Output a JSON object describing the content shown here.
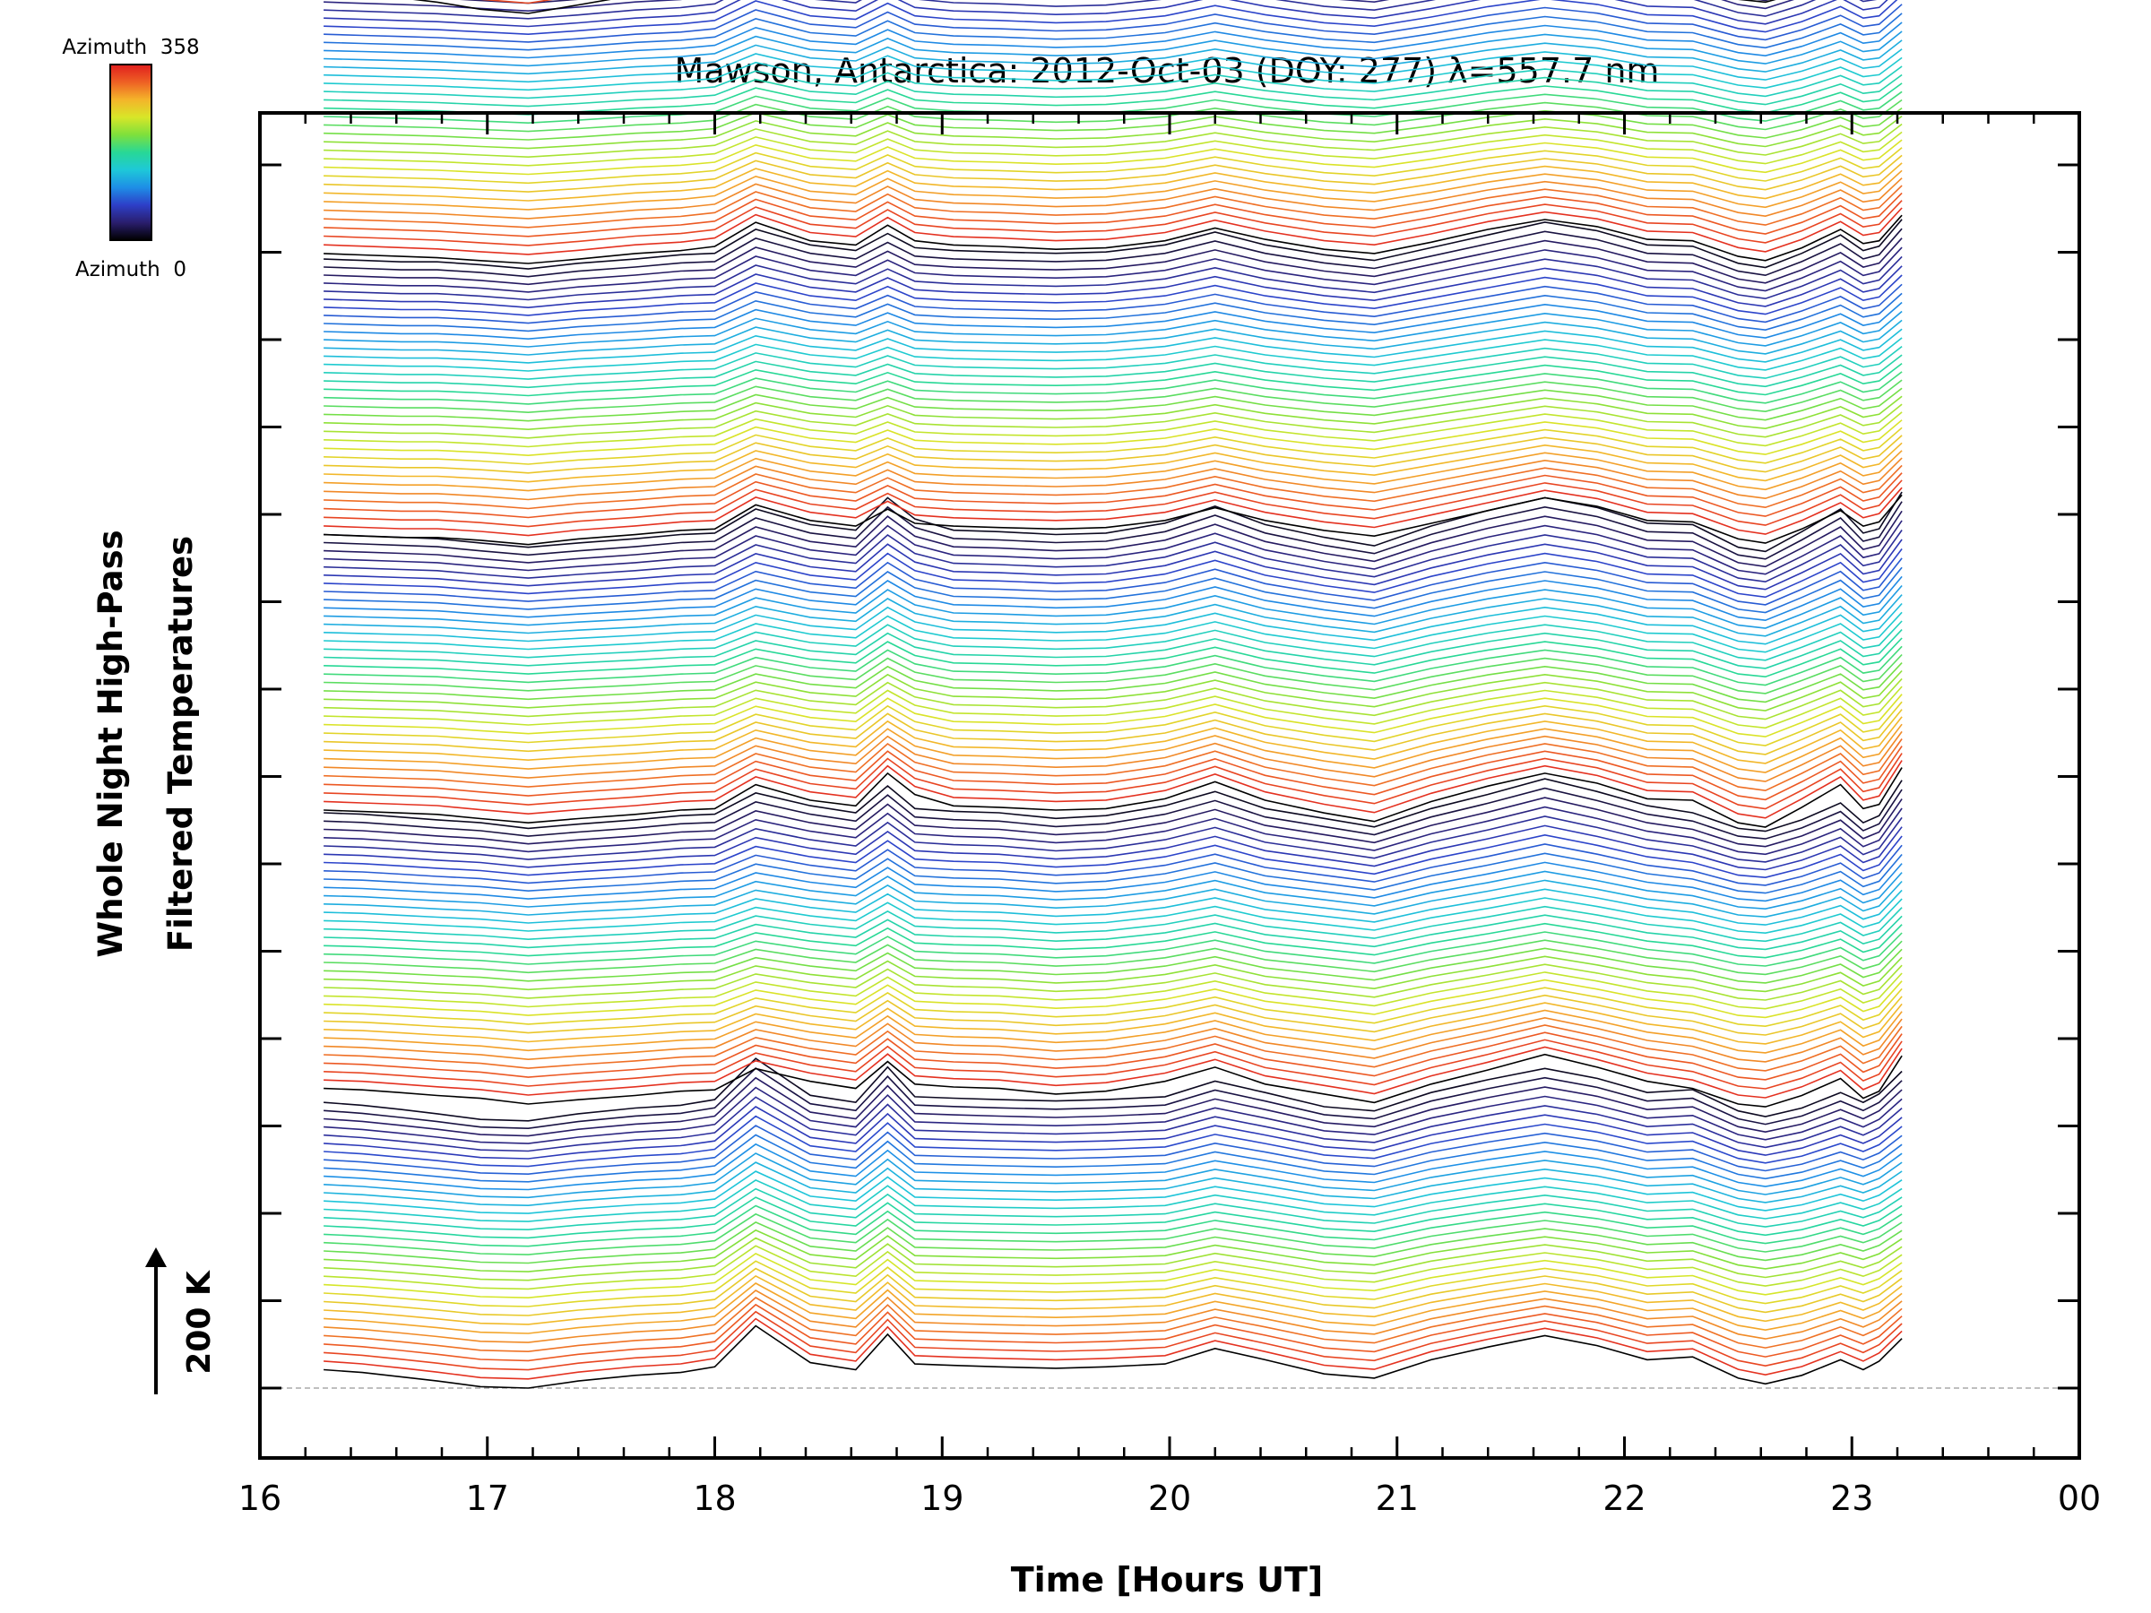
{
  "chart_data": {
    "type": "line",
    "title": "Mawson, Antarctica: 2012-Oct-03 (DOY: 277) λ=557.7 nm",
    "xlabel": "Time [Hours UT]",
    "ylabel_line1": "Whole Night High-Pass",
    "ylabel_line2": "Filtered Temperatures",
    "xlim": [
      16,
      24
    ],
    "x_ticks": [
      "16",
      "17",
      "18",
      "19",
      "20",
      "21",
      "22",
      "23",
      "00"
    ],
    "scale_bar_label": "200 K",
    "scale_bar_kelvin": 200,
    "colorbar": {
      "top_label": "Azimuth  358",
      "bottom_label": "Azimuth  0",
      "min": 0,
      "max": 358,
      "colors": [
        "#000000",
        "#2a1e6e",
        "#2d3fc8",
        "#1e8ee6",
        "#1ec8d8",
        "#28d896",
        "#7ee03c",
        "#d8e628",
        "#f4b42a",
        "#ee6024",
        "#e01e1e"
      ]
    },
    "times": [
      16.28,
      16.45,
      16.62,
      16.78,
      16.97,
      17.18,
      17.4,
      17.65,
      17.85,
      18.0,
      18.18,
      18.42,
      18.62,
      18.76,
      18.88,
      19.05,
      19.25,
      19.5,
      19.72,
      19.98,
      20.2,
      20.42,
      20.68,
      20.9,
      21.15,
      21.4,
      21.65,
      21.88,
      22.1,
      22.3,
      22.5,
      22.62,
      22.78,
      22.95,
      23.05,
      23.12,
      23.22
    ],
    "stack_groups": [
      {
        "group": 1,
        "curve_count": 33,
        "base_temperature_K": [
          96,
          92,
          86,
          80,
          72,
          70,
          80,
          88,
          92,
          100,
          158,
          106,
          96,
          146,
          104,
          102,
          100,
          98,
          100,
          104,
          126,
          110,
          90,
          84,
          110,
          128,
          144,
          130,
          110,
          114,
          84,
          76,
          88,
          110,
          96,
          108,
          140
        ]
      },
      {
        "group": 2,
        "curve_count": 34,
        "base_temperature_K": [
          104,
          102,
          98,
          94,
          90,
          82,
          88,
          94,
          100,
          102,
          132,
          114,
          104,
          142,
          110,
          106,
          104,
          96,
          100,
          114,
          134,
          110,
          96,
          84,
          110,
          130,
          152,
          134,
          114,
          104,
          82,
          78,
          94,
          118,
          90,
          100,
          150
        ]
      },
      {
        "group": 3,
        "curve_count": 34,
        "base_temperature_K": [
          96,
          94,
          92,
          90,
          84,
          78,
          84,
          90,
          96,
          98,
          132,
          110,
          102,
          148,
          118,
          102,
          100,
          96,
          98,
          112,
          136,
          110,
          92,
          80,
          108,
          130,
          148,
          134,
          112,
          110,
          78,
          72,
          100,
          132,
          98,
          104,
          156
        ]
      },
      {
        "group": 4,
        "curve_count": 34,
        "base_temperature_K": [
          84,
          82,
          80,
          80,
          76,
          70,
          78,
          84,
          90,
          92,
          126,
          104,
          96,
          120,
          100,
          96,
          94,
          92,
          94,
          104,
          122,
          104,
          90,
          82,
          100,
          118,
          136,
          124,
          104,
          102,
          78,
          72,
          92,
          118,
          96,
          102,
          140
        ]
      },
      {
        "group": 5,
        "curve_count": 34,
        "base_temperature_K": [
          80,
          78,
          76,
          74,
          70,
          66,
          72,
          80,
          84,
          90,
          124,
          98,
          92,
          120,
          98,
          92,
          90,
          86,
          88,
          98,
          116,
          100,
          86,
          80,
          96,
          114,
          128,
          118,
          100,
          98,
          76,
          70,
          88,
          114,
          94,
          98,
          134
        ]
      },
      {
        "group": 6,
        "curve_count": 15,
        "base_temperature_K": [
          52,
          46,
          40,
          34,
          24,
          18,
          30,
          44,
          50,
          56,
          86,
          62,
          54,
          78,
          60,
          54,
          52,
          46,
          42,
          50,
          66,
          56,
          42,
          42,
          54,
          62,
          76,
          70,
          56,
          62,
          38,
          34,
          48,
          72,
          56,
          60,
          80
        ]
      }
    ]
  }
}
